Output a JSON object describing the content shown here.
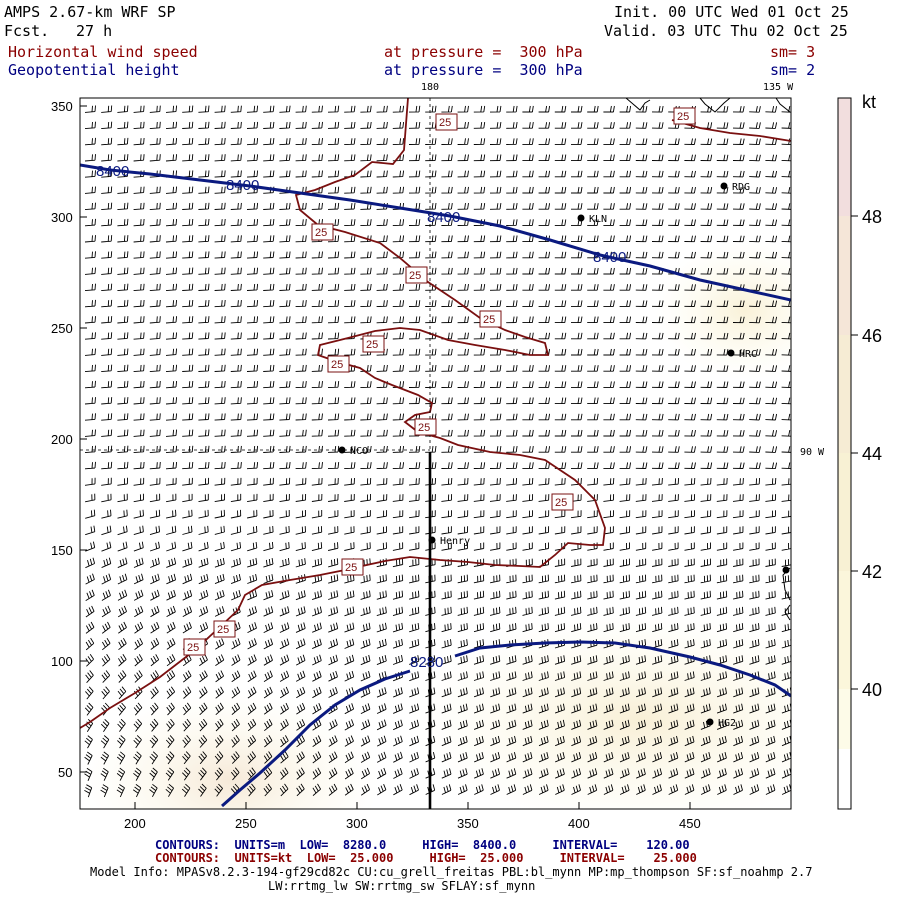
{
  "header": {
    "model": "AMPS 2.67-km WRF SP",
    "fcst_label": "Fcst.",
    "fcst_value": "27 h",
    "init": "Init. 00 UTC Wed 01 Oct 25",
    "valid": "Valid. 03 UTC Thu 02 Oct 25",
    "field1_name": "Horizontal wind speed",
    "field1_level": "at pressure =  300 hPa",
    "field1_sm": "sm= 3",
    "field2_name": "Geopotential height",
    "field2_level": "at pressure =  300 hPa",
    "field2_sm": "sm= 2"
  },
  "lon_labels": {
    "top_180": "180",
    "top_135w": "135 W",
    "right_90w": "90 W"
  },
  "x_ticks": [
    "200",
    "250",
    "300",
    "350",
    "400",
    "450"
  ],
  "y_ticks": [
    "350",
    "300",
    "250",
    "200",
    "150",
    "100",
    "50"
  ],
  "stations": [
    "KLN",
    "RDG",
    "HRC",
    "NCO",
    "Henry",
    "HG2"
  ],
  "height_contour_labels": [
    "8400",
    "8400",
    "8400",
    "8400",
    "8280"
  ],
  "wind_contour_labels": [
    "25",
    "25",
    "25",
    "25",
    "25",
    "25",
    "25",
    "25",
    "25",
    "25",
    "25",
    "25",
    "25",
    "25"
  ],
  "colorbar": {
    "unit": "kt",
    "ticks": [
      "48",
      "46",
      "44",
      "42",
      "40"
    ],
    "colors": [
      "#f2dede",
      "#f5e6d8",
      "#f6ecd4",
      "#f8f1d4",
      "#fbf6db",
      "#fdfbe8",
      "#ffffff"
    ]
  },
  "footer": {
    "contours1": "CONTOURS:  UNITS=m  LOW=  8280.0     HIGH=  8400.0     INTERVAL=    120.00",
    "contours2": "CONTOURS:  UNITS=kt  LOW=  25.000     HIGH=  25.000     INTERVAL=    25.000",
    "model_info": "Model Info: MPASv8.2.3-194-gf29cd82c CU:cu_grell_freitas PBL:bl_mynn MP:mp_thompson SF:sf_noahmp 2.7",
    "model_info2": "LW:rrtmg_lw SW:rrtmg_sw SFLAY:sf_mynn"
  },
  "colors": {
    "height": "#0b1a80",
    "wind": "#7a1010",
    "frame": "#000000"
  }
}
